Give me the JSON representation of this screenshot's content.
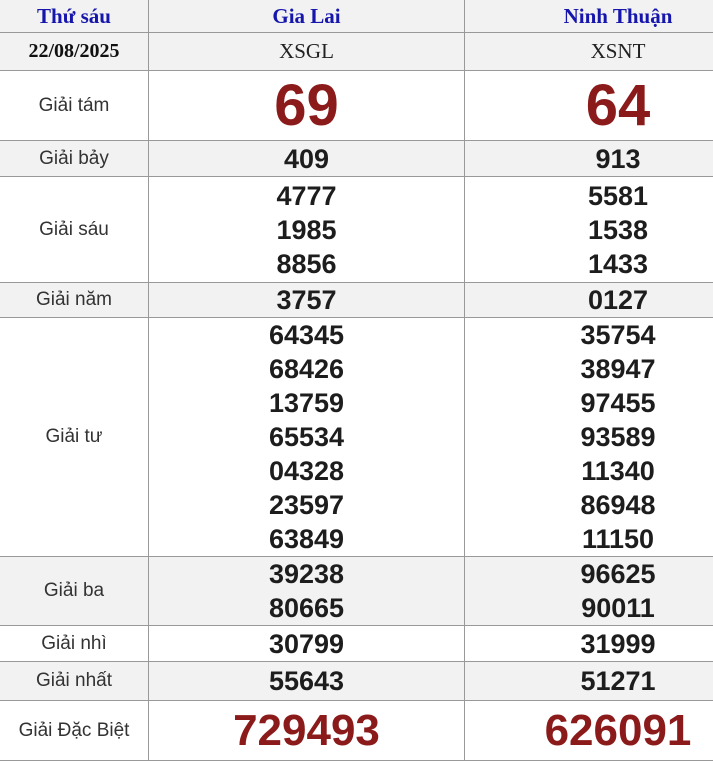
{
  "colors": {
    "header_link_blue": "#1616ac",
    "prize_accent_red": "#8b1a1a",
    "row_alt_gray": "#f2f2f2",
    "border_gray": "#999999",
    "number_black": "#1d1d1d"
  },
  "header": {
    "day": "Thứ sáu",
    "provinces": [
      "Gia Lai",
      "Ninh Thuận"
    ]
  },
  "subheader": {
    "date": "22/08/2025",
    "codes": [
      "XSGL",
      "XSNT"
    ]
  },
  "prizes": [
    {
      "label": "Giải tám",
      "style": "big",
      "values": [
        [
          "69"
        ],
        [
          "64"
        ]
      ]
    },
    {
      "label": "Giải bảy",
      "style": "normal",
      "values": [
        [
          "409"
        ],
        [
          "913"
        ]
      ]
    },
    {
      "label": "Giải sáu",
      "style": "normal",
      "values": [
        [
          "4777",
          "1985",
          "8856"
        ],
        [
          "5581",
          "1538",
          "1433"
        ]
      ]
    },
    {
      "label": "Giải năm",
      "style": "normal",
      "values": [
        [
          "3757"
        ],
        [
          "0127"
        ]
      ]
    },
    {
      "label": "Giải tư",
      "style": "normal",
      "values": [
        [
          "64345",
          "68426",
          "13759",
          "65534",
          "04328",
          "23597",
          "63849"
        ],
        [
          "35754",
          "38947",
          "97455",
          "93589",
          "11340",
          "86948",
          "11150"
        ]
      ]
    },
    {
      "label": "Giải ba",
      "style": "normal",
      "values": [
        [
          "39238",
          "80665"
        ],
        [
          "96625",
          "90011"
        ]
      ]
    },
    {
      "label": "Giải nhì",
      "style": "normal",
      "values": [
        [
          "30799"
        ],
        [
          "31999"
        ]
      ]
    },
    {
      "label": "Giải nhất",
      "style": "normal",
      "values": [
        [
          "55643"
        ],
        [
          "51271"
        ]
      ]
    },
    {
      "label": "Giải Đặc Biệt",
      "style": "special",
      "values": [
        [
          "729493"
        ],
        [
          "626091"
        ]
      ]
    }
  ]
}
